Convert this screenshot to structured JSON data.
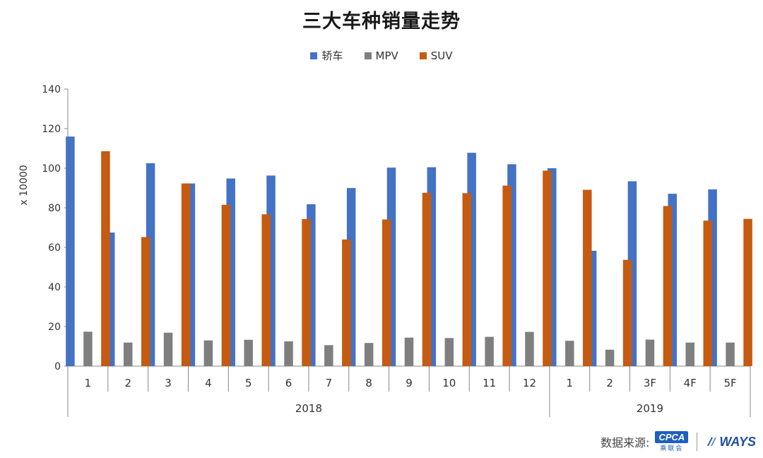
{
  "chart_data": {
    "type": "bar",
    "title": "三大车种销量走势",
    "ylabel": "x 10000",
    "xlabel": "",
    "ylim": [
      0,
      140
    ],
    "yticks": [
      0,
      20,
      40,
      60,
      80,
      100,
      120,
      140
    ],
    "grid": false,
    "legend_position": "top-center",
    "categories": [
      "1",
      "2",
      "3",
      "4",
      "5",
      "6",
      "7",
      "8",
      "9",
      "10",
      "11",
      "12",
      "1",
      "2",
      "3F",
      "4F",
      "5F"
    ],
    "groups": [
      {
        "label": "2018",
        "count": 12
      },
      {
        "label": "2019",
        "count": 5
      }
    ],
    "series": [
      {
        "name": "轿车",
        "color": "#4472c4",
        "values": [
          116,
          67.5,
          102.5,
          92.3,
          94.8,
          96.3,
          81.8,
          90,
          100.3,
          100.5,
          107.8,
          102,
          100,
          58.3,
          93.4,
          87.1,
          89.3
        ]
      },
      {
        "name": "MPV",
        "color": "#7f7f7f",
        "values": [
          17.4,
          11.9,
          16.9,
          13,
          13.3,
          12.5,
          10.6,
          11.7,
          14.4,
          14.2,
          14.8,
          17.3,
          12.8,
          8.3,
          13.4,
          11.9,
          11.9
        ]
      },
      {
        "name": "SUV",
        "color": "#c55a11",
        "values": [
          108.6,
          65.2,
          92.3,
          81.5,
          76.7,
          74.3,
          64,
          74.1,
          87.6,
          87.4,
          91.2,
          98.8,
          89.1,
          53.7,
          80.9,
          73.5,
          74.4
        ]
      }
    ]
  },
  "footer": {
    "source_label": "数据来源:",
    "cpca_logo_text": "CPCA",
    "cpca_logo_sub": "乘联会",
    "ways_logo_text": "WAYS"
  }
}
